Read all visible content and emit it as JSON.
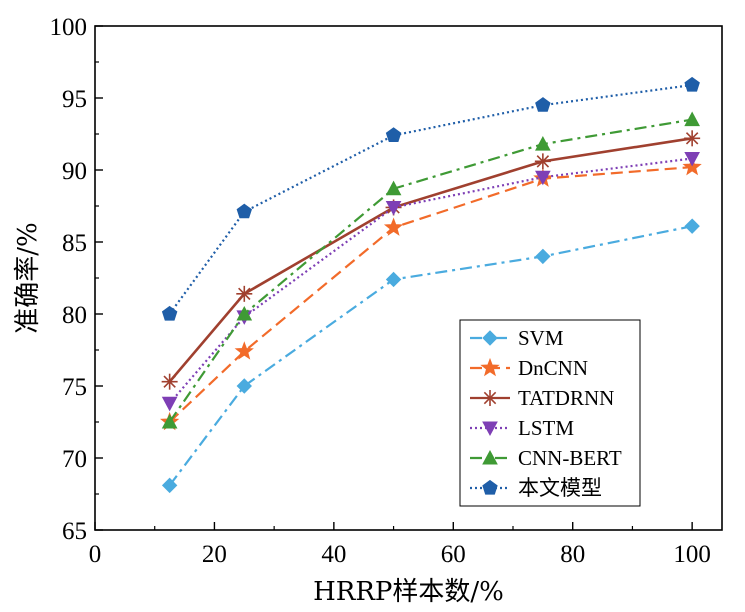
{
  "chart_data": {
    "type": "line",
    "xlabel": "HRRP样本数/%",
    "ylabel": "准确率/%",
    "xlim": [
      0,
      105
    ],
    "ylim": [
      65,
      100
    ],
    "xticks": [
      0,
      20,
      40,
      60,
      80,
      100
    ],
    "yticks": [
      65,
      70,
      75,
      80,
      85,
      90,
      95,
      100
    ],
    "grid": false,
    "legend_position": "bottom-right",
    "x": [
      12.5,
      25,
      50,
      75,
      100
    ],
    "series": [
      {
        "name": "SVM",
        "values": [
          68.1,
          75.0,
          82.4,
          84.0,
          86.1
        ],
        "color": "#4aabdf",
        "dash": "dashdot",
        "marker": "diamond"
      },
      {
        "name": "DnCNN",
        "values": [
          72.5,
          77.4,
          86.0,
          89.4,
          90.2
        ],
        "color": "#f26b2a",
        "dash": "dashed",
        "marker": "star"
      },
      {
        "name": "TATDRNN",
        "values": [
          75.3,
          81.4,
          87.4,
          90.6,
          92.2
        ],
        "color": "#a0402f",
        "dash": "solid",
        "marker": "asterisk"
      },
      {
        "name": "LSTM",
        "values": [
          73.8,
          79.8,
          87.4,
          89.5,
          90.8
        ],
        "color": "#7e3fb5",
        "dash": "dotted",
        "marker": "triangle-down"
      },
      {
        "name": "CNN-BERT",
        "values": [
          72.5,
          80.0,
          88.7,
          91.8,
          93.5
        ],
        "color": "#3f9a35",
        "dash": "dashdot",
        "marker": "triangle-up"
      },
      {
        "name": "本文模型",
        "values": [
          80.0,
          87.1,
          92.4,
          94.5,
          95.9
        ],
        "color": "#1f5ea8",
        "dash": "dotted",
        "marker": "pentagon"
      }
    ]
  }
}
